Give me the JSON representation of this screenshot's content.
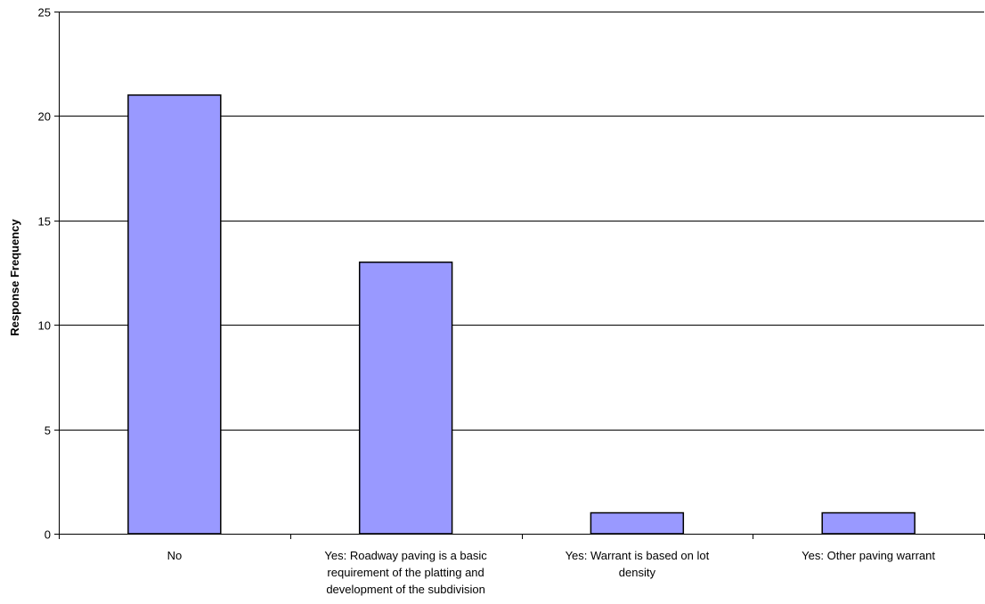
{
  "chart_data": {
    "type": "bar",
    "title": "",
    "xlabel": "",
    "ylabel": "Response Frequency",
    "ylim": [
      0,
      25
    ],
    "yticks": [
      0,
      5,
      10,
      15,
      20,
      25
    ],
    "grid": true,
    "legend": "none",
    "bar_color": "#9999FF",
    "bar_edge_color": "#000000",
    "categories": [
      [
        "No"
      ],
      [
        "Yes: Roadway paving is a basic",
        "requirement of the platting and",
        "development of the subdivision"
      ],
      [
        "Yes: Warrant is based on lot",
        "density"
      ],
      [
        "Yes: Other paving warrant"
      ]
    ],
    "values": [
      21,
      13,
      1,
      1
    ]
  }
}
